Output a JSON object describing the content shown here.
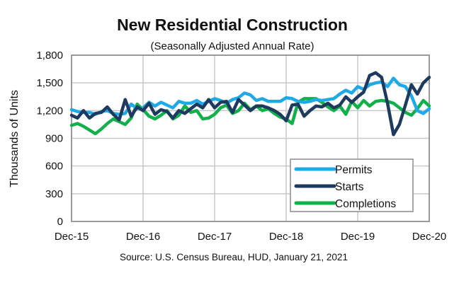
{
  "chart_data": {
    "type": "line",
    "title": "New Residential Construction",
    "subtitle": "(Seasonally Adjusted Annual Rate)",
    "xlabel": "",
    "ylabel": "Thousands of Units",
    "source": "Source:  U.S. Census Bureau, HUD, January 21, 2021",
    "ylim": [
      0,
      1800
    ],
    "yticks": [
      0,
      300,
      600,
      900,
      1200,
      1500,
      1800
    ],
    "ytick_labels": [
      "0",
      "300",
      "600",
      "900",
      "1,200",
      "1,500",
      "1,800"
    ],
    "xtick_labels": [
      "Dec-15",
      "Dec-16",
      "Dec-17",
      "Dec-18",
      "Dec-19",
      "Dec-20"
    ],
    "x_start": "Dec-15",
    "x_end": "Dec-20",
    "x_frequency": "monthly",
    "grid": true,
    "legend_position": "bottom-right",
    "series": [
      {
        "name": "Permits",
        "color": "#1fa9e6",
        "values": [
          1210,
          1190,
          1180,
          1180,
          1160,
          1190,
          1200,
          1170,
          1160,
          1170,
          1270,
          1220,
          1230,
          1290,
          1250,
          1290,
          1260,
          1230,
          1300,
          1280,
          1280,
          1310,
          1270,
          1300,
          1330,
          1310,
          1280,
          1320,
          1340,
          1390,
          1370,
          1310,
          1330,
          1300,
          1300,
          1300,
          1340,
          1330,
          1300,
          1290,
          1300,
          1320,
          1310,
          1320,
          1330,
          1380,
          1420,
          1390,
          1460,
          1430,
          1480,
          1500,
          1510,
          1460,
          1550,
          1480,
          1460,
          1360,
          1200,
          1170,
          1220
        ]
      },
      {
        "name": "Starts",
        "color": "#1f3a5f",
        "values": [
          1150,
          1120,
          1200,
          1120,
          1170,
          1180,
          1240,
          1160,
          1100,
          1320,
          1140,
          1240,
          1200,
          1280,
          1160,
          1210,
          1190,
          1120,
          1200,
          1170,
          1220,
          1270,
          1230,
          1320,
          1230,
          1290,
          1300,
          1180,
          1320,
          1260,
          1200,
          1250,
          1250,
          1230,
          1200,
          1160,
          1090,
          1260,
          1270,
          1140,
          1200,
          1250,
          1240,
          1280,
          1230,
          1260,
          1350,
          1290,
          1350,
          1400,
          1580,
          1610,
          1560,
          1280,
          940,
          1050,
          1260,
          1480,
          1380,
          1500,
          1560
        ]
      },
      {
        "name": "Completions",
        "color": "#12b04a",
        "values": [
          1040,
          1060,
          1030,
          990,
          950,
          1000,
          1060,
          1110,
          1080,
          1050,
          1120,
          1270,
          1210,
          1140,
          1110,
          1150,
          1200,
          1110,
          1150,
          1250,
          1180,
          1200,
          1110,
          1120,
          1160,
          1230,
          1260,
          1170,
          1200,
          1280,
          1210,
          1250,
          1200,
          1220,
          1170,
          1130,
          1110,
          1060,
          1290,
          1330,
          1330,
          1330,
          1290,
          1240,
          1200,
          1250,
          1160,
          1300,
          1230,
          1310,
          1250,
          1300,
          1310,
          1300,
          1280,
          1230,
          1180,
          1150,
          1220,
          1310,
          1250
        ]
      }
    ]
  }
}
